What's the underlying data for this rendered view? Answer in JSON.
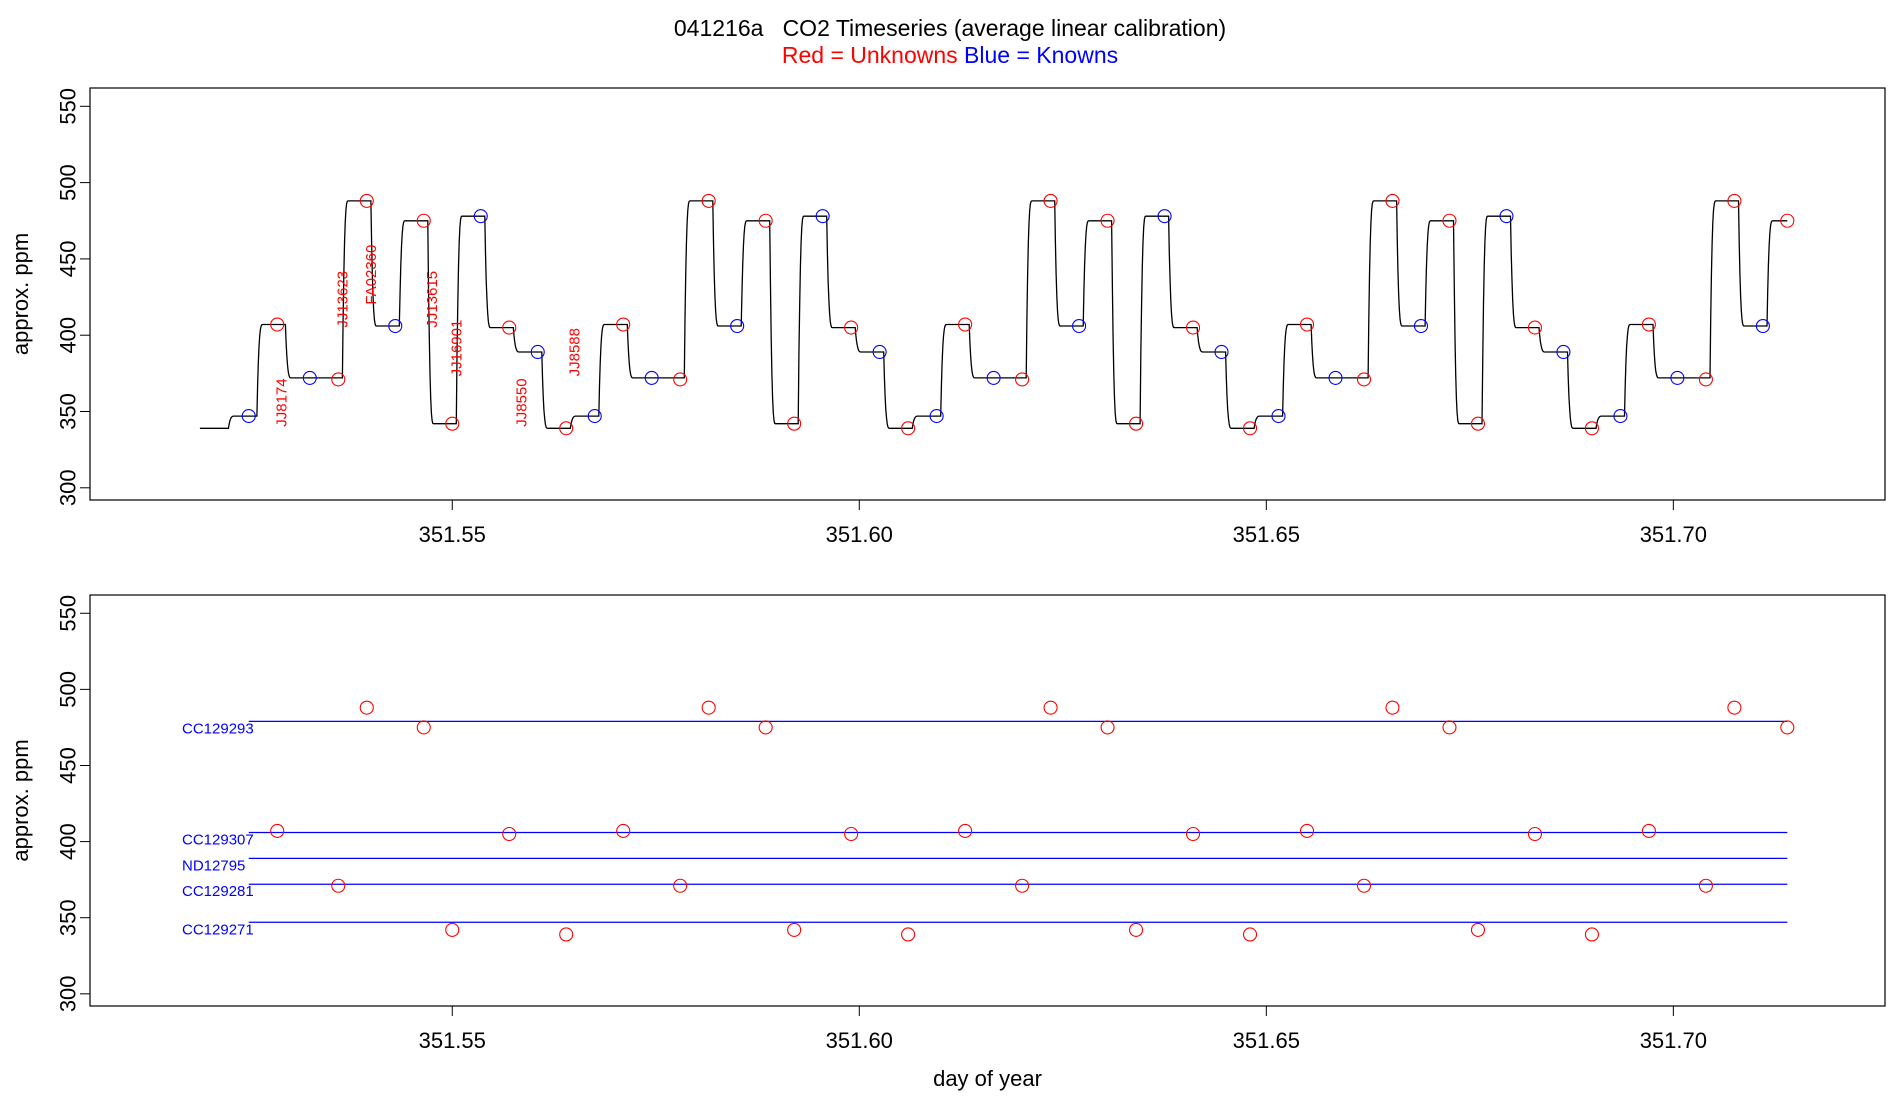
{
  "title": "041216a   CO2 Timeseries (average linear calibration)",
  "subtitle": {
    "red_label": "Red = Unknowns",
    "blue_label": "Blue = Knowns"
  },
  "colors": {
    "unknown": "#ff0000",
    "known": "#0000ff",
    "trace": "#000000",
    "axis": "#000000"
  },
  "chart_data": [
    {
      "type": "line",
      "panel": "top",
      "title": "",
      "xlabel": "",
      "ylabel": "approx. ppm",
      "xlim": [
        351.5055,
        351.726
      ],
      "ylim": [
        292,
        562
      ],
      "x_ticks": [
        351.55,
        351.6,
        351.65,
        351.7
      ],
      "x_tick_labels": [
        "351.55",
        "351.60",
        "351.65",
        "351.70"
      ],
      "y_ticks": [
        300,
        350,
        400,
        450,
        500,
        550
      ],
      "grid": false,
      "trace_steps": [
        {
          "x": 351.519,
          "y": 339
        },
        {
          "x": 351.5225,
          "y": 347
        },
        {
          "x": 351.526,
          "y": 407
        },
        {
          "x": 351.5295,
          "y": 372
        },
        {
          "x": 351.5365,
          "y": 488
        },
        {
          "x": 351.54,
          "y": 406
        },
        {
          "x": 351.5435,
          "y": 475
        },
        {
          "x": 351.547,
          "y": 342
        },
        {
          "x": 351.5505,
          "y": 478
        },
        {
          "x": 351.554,
          "y": 405
        },
        {
          "x": 351.5575,
          "y": 389
        },
        {
          "x": 351.561,
          "y": 339
        },
        {
          "x": 351.5645,
          "y": 347
        },
        {
          "x": 351.568,
          "y": 407
        },
        {
          "x": 351.5715,
          "y": 372
        },
        {
          "x": 351.5785,
          "y": 488
        },
        {
          "x": 351.582,
          "y": 406
        },
        {
          "x": 351.5855,
          "y": 475
        },
        {
          "x": 351.589,
          "y": 342
        },
        {
          "x": 351.5925,
          "y": 478
        },
        {
          "x": 351.596,
          "y": 405
        },
        {
          "x": 351.5995,
          "y": 389
        },
        {
          "x": 351.603,
          "y": 339
        },
        {
          "x": 351.6065,
          "y": 347
        },
        {
          "x": 351.61,
          "y": 407
        },
        {
          "x": 351.6135,
          "y": 372
        },
        {
          "x": 351.6205,
          "y": 488
        },
        {
          "x": 351.624,
          "y": 406
        },
        {
          "x": 351.6275,
          "y": 475
        },
        {
          "x": 351.631,
          "y": 342
        },
        {
          "x": 351.6345,
          "y": 478
        },
        {
          "x": 351.638,
          "y": 405
        },
        {
          "x": 351.6415,
          "y": 389
        },
        {
          "x": 351.645,
          "y": 339
        },
        {
          "x": 351.6485,
          "y": 347
        },
        {
          "x": 351.652,
          "y": 407
        },
        {
          "x": 351.6555,
          "y": 372
        },
        {
          "x": 351.6625,
          "y": 488
        },
        {
          "x": 351.666,
          "y": 406
        },
        {
          "x": 351.6695,
          "y": 475
        },
        {
          "x": 351.673,
          "y": 342
        },
        {
          "x": 351.6765,
          "y": 478
        },
        {
          "x": 351.68,
          "y": 405
        },
        {
          "x": 351.6835,
          "y": 389
        },
        {
          "x": 351.687,
          "y": 339
        },
        {
          "x": 351.6905,
          "y": 347
        },
        {
          "x": 351.694,
          "y": 407
        },
        {
          "x": 351.6975,
          "y": 372
        },
        {
          "x": 351.7045,
          "y": 488
        },
        {
          "x": 351.708,
          "y": 406
        },
        {
          "x": 351.7115,
          "y": 475
        }
      ],
      "trace_end_x": 351.714,
      "unknown_points": [
        {
          "x": 351.5285,
          "y": 407
        },
        {
          "x": 351.536,
          "y": 371
        },
        {
          "x": 351.5395,
          "y": 488
        },
        {
          "x": 351.5465,
          "y": 475
        },
        {
          "x": 351.55,
          "y": 342
        },
        {
          "x": 351.557,
          "y": 405
        },
        {
          "x": 351.564,
          "y": 339
        },
        {
          "x": 351.571,
          "y": 407
        },
        {
          "x": 351.578,
          "y": 371
        },
        {
          "x": 351.5815,
          "y": 488
        },
        {
          "x": 351.5885,
          "y": 475
        },
        {
          "x": 351.592,
          "y": 342
        },
        {
          "x": 351.599,
          "y": 405
        },
        {
          "x": 351.606,
          "y": 339
        },
        {
          "x": 351.613,
          "y": 407
        },
        {
          "x": 351.62,
          "y": 371
        },
        {
          "x": 351.6235,
          "y": 488
        },
        {
          "x": 351.6305,
          "y": 475
        },
        {
          "x": 351.634,
          "y": 342
        },
        {
          "x": 351.641,
          "y": 405
        },
        {
          "x": 351.648,
          "y": 339
        },
        {
          "x": 351.655,
          "y": 407
        },
        {
          "x": 351.662,
          "y": 371
        },
        {
          "x": 351.6655,
          "y": 488
        },
        {
          "x": 351.6725,
          "y": 475
        },
        {
          "x": 351.676,
          "y": 342
        },
        {
          "x": 351.683,
          "y": 405
        },
        {
          "x": 351.69,
          "y": 339
        },
        {
          "x": 351.697,
          "y": 407
        },
        {
          "x": 351.704,
          "y": 371
        },
        {
          "x": 351.7075,
          "y": 488
        },
        {
          "x": 351.714,
          "y": 475
        }
      ],
      "known_points": [
        {
          "x": 351.525,
          "y": 347
        },
        {
          "x": 351.5325,
          "y": 372
        },
        {
          "x": 351.543,
          "y": 406
        },
        {
          "x": 351.5535,
          "y": 478
        },
        {
          "x": 351.5605,
          "y": 389
        },
        {
          "x": 351.5675,
          "y": 347
        },
        {
          "x": 351.5745,
          "y": 372
        },
        {
          "x": 351.585,
          "y": 406
        },
        {
          "x": 351.5955,
          "y": 478
        },
        {
          "x": 351.6025,
          "y": 389
        },
        {
          "x": 351.6095,
          "y": 347
        },
        {
          "x": 351.6165,
          "y": 372
        },
        {
          "x": 351.627,
          "y": 406
        },
        {
          "x": 351.6375,
          "y": 478
        },
        {
          "x": 351.6445,
          "y": 389
        },
        {
          "x": 351.6515,
          "y": 347
        },
        {
          "x": 351.6585,
          "y": 372
        },
        {
          "x": 351.669,
          "y": 406
        },
        {
          "x": 351.6795,
          "y": 478
        },
        {
          "x": 351.6865,
          "y": 389
        },
        {
          "x": 351.6935,
          "y": 347
        },
        {
          "x": 351.7005,
          "y": 372
        },
        {
          "x": 351.711,
          "y": 406
        }
      ],
      "annotations": [
        {
          "text": "JJ8174",
          "x": 351.529,
          "y": 340
        },
        {
          "text": "JJ13623",
          "x": 351.5365,
          "y": 405
        },
        {
          "text": "FA02360",
          "x": 351.54,
          "y": 420
        },
        {
          "text": "JJ13615",
          "x": 351.5475,
          "y": 405
        },
        {
          "text": "JJ16901",
          "x": 351.5505,
          "y": 373
        },
        {
          "text": "JJ8550",
          "x": 351.5585,
          "y": 340
        },
        {
          "text": "JJ8588",
          "x": 351.565,
          "y": 373
        }
      ]
    },
    {
      "type": "scatter",
      "panel": "bottom",
      "title": "",
      "xlabel": "day of year",
      "ylabel": "approx. ppm",
      "xlim": [
        351.5055,
        351.726
      ],
      "ylim": [
        292,
        562
      ],
      "x_ticks": [
        351.55,
        351.6,
        351.65,
        351.7
      ],
      "x_tick_labels": [
        "351.55",
        "351.60",
        "351.65",
        "351.70"
      ],
      "y_ticks": [
        300,
        350,
        400,
        450,
        500,
        550
      ],
      "grid": false,
      "reference_lines": [
        {
          "name": "CC129293",
          "y": 479
        },
        {
          "name": "CC129307",
          "y": 406
        },
        {
          "name": "ND12795",
          "y": 389
        },
        {
          "name": "CC129281",
          "y": 372
        },
        {
          "name": "CC129271",
          "y": 347
        }
      ],
      "ref_line_x": [
        351.525,
        351.714
      ],
      "unknown_points": [
        {
          "x": 351.5285,
          "y": 407
        },
        {
          "x": 351.536,
          "y": 371
        },
        {
          "x": 351.5395,
          "y": 488
        },
        {
          "x": 351.5465,
          "y": 475
        },
        {
          "x": 351.55,
          "y": 342
        },
        {
          "x": 351.557,
          "y": 405
        },
        {
          "x": 351.564,
          "y": 339
        },
        {
          "x": 351.571,
          "y": 407
        },
        {
          "x": 351.578,
          "y": 371
        },
        {
          "x": 351.5815,
          "y": 488
        },
        {
          "x": 351.5885,
          "y": 475
        },
        {
          "x": 351.592,
          "y": 342
        },
        {
          "x": 351.599,
          "y": 405
        },
        {
          "x": 351.606,
          "y": 339
        },
        {
          "x": 351.613,
          "y": 407
        },
        {
          "x": 351.62,
          "y": 371
        },
        {
          "x": 351.6235,
          "y": 488
        },
        {
          "x": 351.6305,
          "y": 475
        },
        {
          "x": 351.634,
          "y": 342
        },
        {
          "x": 351.641,
          "y": 405
        },
        {
          "x": 351.648,
          "y": 339
        },
        {
          "x": 351.655,
          "y": 407
        },
        {
          "x": 351.662,
          "y": 371
        },
        {
          "x": 351.6655,
          "y": 488
        },
        {
          "x": 351.6725,
          "y": 475
        },
        {
          "x": 351.676,
          "y": 342
        },
        {
          "x": 351.683,
          "y": 405
        },
        {
          "x": 351.69,
          "y": 339
        },
        {
          "x": 351.697,
          "y": 407
        },
        {
          "x": 351.704,
          "y": 371
        },
        {
          "x": 351.7075,
          "y": 488
        },
        {
          "x": 351.714,
          "y": 475
        }
      ]
    }
  ]
}
